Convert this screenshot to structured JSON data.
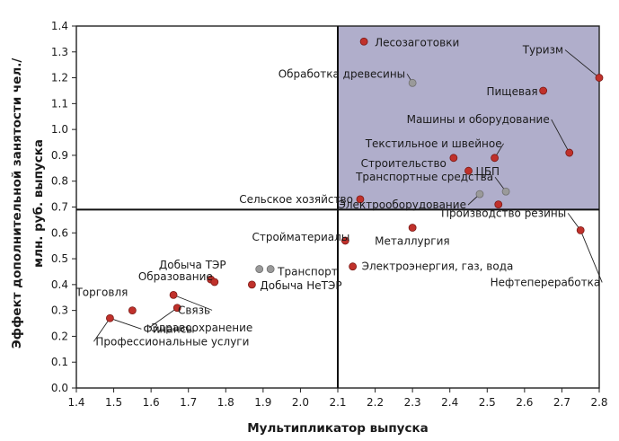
{
  "chart_data": {
    "type": "scatter",
    "xlabel": "Мультипликатор выпуска",
    "ylabel_lines": [
      "Эффект дополнительной занятости чел./",
      "млн. руб. выпуска"
    ],
    "xlim": [
      1.4,
      2.8
    ],
    "ylim": [
      0.0,
      1.4
    ],
    "xticks": [
      "1.4",
      "1.5",
      "1.6",
      "1.7",
      "1.8",
      "1.9",
      "2.0",
      "2.1",
      "2.2",
      "2.3",
      "2.4",
      "2.5",
      "2.6",
      "2.7",
      "2.8"
    ],
    "yticks": [
      "0.0",
      "0.1",
      "0.2",
      "0.3",
      "0.4",
      "0.5",
      "0.6",
      "0.7",
      "0.8",
      "0.9",
      "1.0",
      "1.1",
      "1.2",
      "1.3",
      "1.4"
    ],
    "divider_x": 2.1,
    "divider_y": 0.69,
    "highlight_quadrant": "top-right",
    "colors": {
      "highlight": "#b0aecb",
      "red": "#c0312b",
      "gray": "#9a9a9a"
    },
    "points": [
      {
        "label": "Лесозаготовки",
        "x": 2.17,
        "y": 1.34,
        "color": "red"
      },
      {
        "label": "Туризм",
        "x": 2.8,
        "y": 1.2,
        "color": "red"
      },
      {
        "label": "Обработка древесины",
        "x": 2.3,
        "y": 1.18,
        "color": "gray"
      },
      {
        "label": "Пищевая",
        "x": 2.65,
        "y": 1.15,
        "color": "red"
      },
      {
        "label": "Машины и оборудование",
        "x": 2.72,
        "y": 0.91,
        "color": "red"
      },
      {
        "label": "Текстильное и швейное",
        "x": 2.52,
        "y": 0.89,
        "color": "red"
      },
      {
        "label": "Строительство",
        "x": 2.41,
        "y": 0.89,
        "color": "red"
      },
      {
        "label": "ЦБП",
        "x": 2.45,
        "y": 0.84,
        "color": "red"
      },
      {
        "label": "Транспортные средства",
        "x": 2.55,
        "y": 0.76,
        "color": "gray"
      },
      {
        "label": "Электрооборудование",
        "x": 2.48,
        "y": 0.75,
        "color": "gray"
      },
      {
        "label": "Сельское хозяйство",
        "x": 2.16,
        "y": 0.73,
        "color": "red"
      },
      {
        "label": "",
        "x": 2.53,
        "y": 0.71,
        "color": "red"
      },
      {
        "label": "Производство резины",
        "x": 2.75,
        "y": 0.61,
        "color": "red"
      },
      {
        "label": "Металлургия",
        "x": 2.3,
        "y": 0.62,
        "color": "red"
      },
      {
        "label": "Стройматериалы",
        "x": 2.12,
        "y": 0.57,
        "color": "red"
      },
      {
        "label": "Электроэнергия, газ, вода",
        "x": 2.14,
        "y": 0.47,
        "color": "red"
      },
      {
        "label": "Нефтепереработка",
        "x": 2.75,
        "y": 0.61,
        "color": "red"
      },
      {
        "label": "Добыча ТЭР",
        "x": 1.76,
        "y": 0.42,
        "color": "red"
      },
      {
        "label": "Транспорт",
        "x": 1.92,
        "y": 0.46,
        "color": "gray"
      },
      {
        "label": "",
        "x": 1.89,
        "y": 0.46,
        "color": "gray"
      },
      {
        "label": "Добыча НеТЭР",
        "x": 1.87,
        "y": 0.4,
        "color": "red"
      },
      {
        "label": "Образование",
        "x": 1.77,
        "y": 0.41,
        "color": "red"
      },
      {
        "label": "Связь",
        "x": 1.66,
        "y": 0.36,
        "color": "red"
      },
      {
        "label": "Торговля",
        "x": 1.55,
        "y": 0.3,
        "color": "red"
      },
      {
        "label": "Здравоохранение",
        "x": 1.67,
        "y": 0.31,
        "color": "red"
      },
      {
        "label": "Финансы",
        "x": 1.49,
        "y": 0.27,
        "color": "red"
      },
      {
        "label": "Профессиональные услуги",
        "x": 1.49,
        "y": 0.27,
        "color": "red"
      }
    ]
  }
}
